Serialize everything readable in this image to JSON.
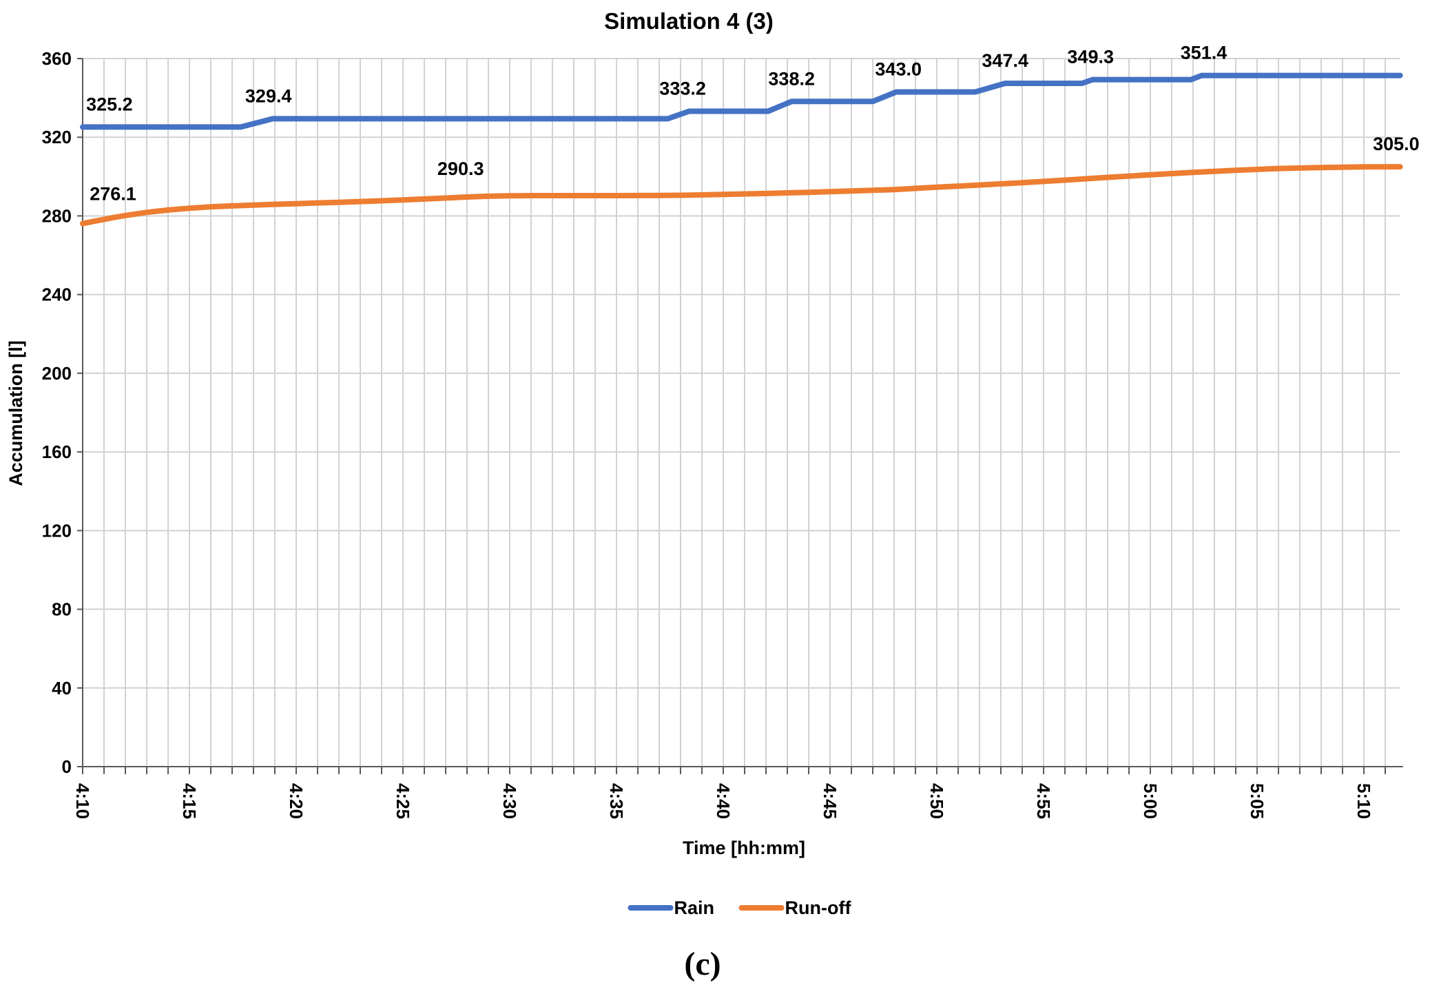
{
  "caption": "(c)",
  "chart_data": {
    "type": "line",
    "title": "Simulation 4 (3)",
    "xlabel": "Time [hh:mm]",
    "ylabel": "Accumulation [l]",
    "xlim": [
      0,
      61.7
    ],
    "ylim": [
      0,
      360
    ],
    "x_unit": "minutes after 4:10",
    "x_minor_grid_interval_min": 1,
    "grid": true,
    "legend_position": "bottom",
    "x_ticks": [
      {
        "t": 0,
        "label": "4:10"
      },
      {
        "t": 5,
        "label": "4:15"
      },
      {
        "t": 10,
        "label": "4:20"
      },
      {
        "t": 15,
        "label": "4:25"
      },
      {
        "t": 20,
        "label": "4:30"
      },
      {
        "t": 25,
        "label": "4:35"
      },
      {
        "t": 30,
        "label": "4:40"
      },
      {
        "t": 35,
        "label": "4:45"
      },
      {
        "t": 40,
        "label": "4:50"
      },
      {
        "t": 45,
        "label": "4:55"
      },
      {
        "t": 50,
        "label": "5:00"
      },
      {
        "t": 55,
        "label": "5:05"
      },
      {
        "t": 60,
        "label": "5:10"
      }
    ],
    "y_ticks": [
      0,
      40,
      80,
      120,
      160,
      200,
      240,
      280,
      320,
      360
    ],
    "colors": {
      "rain": "#4472C4",
      "runoff": "#ED7D31",
      "grid": "#D2D2D2",
      "axis": "#595959",
      "label_text": "#000000"
    },
    "series": [
      {
        "name": "Rain",
        "color": "#4472C4",
        "points": [
          [
            0,
            325.2
          ],
          [
            7.4,
            325.2
          ],
          [
            8.9,
            329.4
          ],
          [
            27.4,
            329.4
          ],
          [
            28.4,
            333.2
          ],
          [
            32.1,
            333.2
          ],
          [
            33.2,
            338.2
          ],
          [
            37.0,
            338.2
          ],
          [
            38.1,
            343.0
          ],
          [
            41.8,
            343.0
          ],
          [
            43.2,
            347.4
          ],
          [
            46.8,
            347.4
          ],
          [
            47.3,
            349.3
          ],
          [
            51.9,
            349.3
          ],
          [
            52.4,
            351.4
          ],
          [
            61.7,
            351.4
          ]
        ],
        "labels": [
          {
            "t": 0.1,
            "v": 325.2,
            "text": "325.2",
            "anchor": "start",
            "dx": 2,
            "dy": -24
          },
          {
            "t": 8.7,
            "v": 329.4,
            "text": "329.4",
            "anchor": "middle",
            "dx": 0,
            "dy": -24
          },
          {
            "t": 28.1,
            "v": 333.2,
            "text": "333.2",
            "anchor": "middle",
            "dx": 0,
            "dy": -24
          },
          {
            "t": 33.2,
            "v": 338.2,
            "text": "338.2",
            "anchor": "middle",
            "dx": 0,
            "dy": -24
          },
          {
            "t": 38.2,
            "v": 343.0,
            "text": "343.0",
            "anchor": "middle",
            "dx": 0,
            "dy": -24
          },
          {
            "t": 43.2,
            "v": 347.4,
            "text": "347.4",
            "anchor": "middle",
            "dx": 0,
            "dy": -24
          },
          {
            "t": 47.2,
            "v": 349.3,
            "text": "349.3",
            "anchor": "middle",
            "dx": 0,
            "dy": -24
          },
          {
            "t": 52.5,
            "v": 351.4,
            "text": "351.4",
            "anchor": "middle",
            "dx": 0,
            "dy": -24
          }
        ]
      },
      {
        "name": "Run-off",
        "color": "#ED7D31",
        "points": [
          [
            0,
            276.1
          ],
          [
            0.5,
            277.2
          ],
          [
            1,
            278.2
          ],
          [
            1.5,
            279.3
          ],
          [
            2,
            280.2
          ],
          [
            3,
            281.8
          ],
          [
            4,
            283.0
          ],
          [
            5,
            283.9
          ],
          [
            6,
            284.6
          ],
          [
            7,
            285.1
          ],
          [
            8,
            285.5
          ],
          [
            9,
            285.9
          ],
          [
            10,
            286.2
          ],
          [
            11,
            286.6
          ],
          [
            12,
            286.9
          ],
          [
            13,
            287.3
          ],
          [
            14,
            287.7
          ],
          [
            15,
            288.1
          ],
          [
            16,
            288.6
          ],
          [
            17,
            289.1
          ],
          [
            18,
            289.6
          ],
          [
            19,
            290.0
          ],
          [
            20,
            290.2
          ],
          [
            21,
            290.3
          ],
          [
            23,
            290.3
          ],
          [
            25,
            290.3
          ],
          [
            27,
            290.4
          ],
          [
            28,
            290.5
          ],
          [
            30,
            290.9
          ],
          [
            32,
            291.4
          ],
          [
            34,
            292.0
          ],
          [
            36,
            292.7
          ],
          [
            38,
            293.4
          ],
          [
            40,
            294.6
          ],
          [
            42,
            295.7
          ],
          [
            44,
            296.9
          ],
          [
            46,
            298.2
          ],
          [
            48,
            299.6
          ],
          [
            50,
            300.9
          ],
          [
            52,
            302.1
          ],
          [
            54,
            303.2
          ],
          [
            56,
            304.1
          ],
          [
            58,
            304.6
          ],
          [
            60,
            304.9
          ],
          [
            61.7,
            305.0
          ]
        ],
        "labels": [
          {
            "t": 0.2,
            "v": 276.1,
            "text": "276.1",
            "anchor": "start",
            "dx": 4,
            "dy": -34
          },
          {
            "t": 17.7,
            "v": 290.3,
            "text": "290.3",
            "anchor": "middle",
            "dx": 0,
            "dy": -30
          },
          {
            "t": 61.7,
            "v": 305.0,
            "text": "305.0",
            "anchor": "end",
            "dx": 28,
            "dy": -24
          }
        ]
      }
    ]
  }
}
